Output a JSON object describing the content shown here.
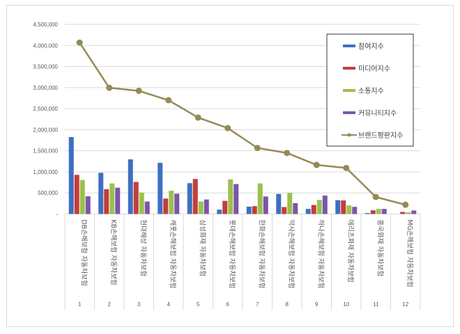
{
  "chart_data": {
    "type": "bar",
    "title": "",
    "xlabel": "",
    "ylabel": "",
    "ylim": [
      0,
      4500000
    ],
    "grid": true,
    "legend_position": "upper right (inside)",
    "y_ticks": [
      "-",
      "500,000",
      "1,000,000",
      "1,500,000",
      "2,000,000",
      "2,500,000",
      "3,000,000",
      "3,500,000",
      "4,000,000",
      "4,500,000"
    ],
    "x_numbers": [
      "1",
      "2",
      "3",
      "4",
      "5",
      "6",
      "7",
      "8",
      "9",
      "10",
      "11",
      "12"
    ],
    "categories": [
      "DB손해보험 자동차보험",
      "KB손해보험 자동차보험",
      "현대해상 자동차보험",
      "캐롯손해보험 자동차보험",
      "삼성화재 자동차보험",
      "롯데손해보험 자동차보험",
      "한화손해보험 자동차보험",
      "악사손해보험 자동차보험",
      "하나손해보험 자동차보험",
      "메리츠화재 자동차보험",
      "흥국화재 자동차보험",
      "MG손해보험 자동차보험"
    ],
    "category_label_lines": [
      [
        "DB손해보험",
        "자동차보험"
      ],
      [
        "KB손해보험",
        "자동차보험"
      ],
      [
        "현대해상",
        "자동차보험"
      ],
      [
        "캐롯손해보험",
        "자동차보험"
      ],
      [
        "삼성화재",
        "자동차보험"
      ],
      [
        "롯데손해보험",
        "자동차보험"
      ],
      [
        "한화손해보험",
        "자동차보험"
      ],
      [
        "악사손해보험",
        "자동차보험"
      ],
      [
        "하나손해보험",
        "자동차보험"
      ],
      [
        "메리츠화재",
        "자동차보험"
      ],
      [
        "흥국화재",
        "자동차보험"
      ],
      [
        "MG손해보험",
        "자동차보험"
      ]
    ],
    "series": [
      {
        "name": "참여지수",
        "type": "bar",
        "color": "#3F6FC1",
        "values": [
          1825000,
          977000,
          1295000,
          1213000,
          731000,
          103000,
          174000,
          475000,
          120000,
          328000,
          22000,
          0
        ]
      },
      {
        "name": "미디어지수",
        "type": "bar",
        "color": "#C33D3A",
        "values": [
          928000,
          590000,
          759000,
          366000,
          830000,
          311000,
          185000,
          164000,
          213000,
          321000,
          87000,
          49000
        ]
      },
      {
        "name": "소통지수",
        "type": "bar",
        "color": "#9BC04E",
        "values": [
          808000,
          726000,
          508000,
          551000,
          295000,
          820000,
          726000,
          502000,
          333000,
          202000,
          120000,
          38000
        ]
      },
      {
        "name": "커뮤니티지수",
        "type": "bar",
        "color": "#7A56A9",
        "values": [
          420000,
          623000,
          295000,
          480000,
          344000,
          710000,
          415000,
          256000,
          436000,
          169000,
          120000,
          82000
        ]
      },
      {
        "name": "브랜드평판지수",
        "type": "line",
        "color": "#958A55",
        "values": [
          4067000,
          2995000,
          2922000,
          2700000,
          2288000,
          2038000,
          1567000,
          1447000,
          1164000,
          1092000,
          403000,
          218000
        ]
      }
    ]
  }
}
